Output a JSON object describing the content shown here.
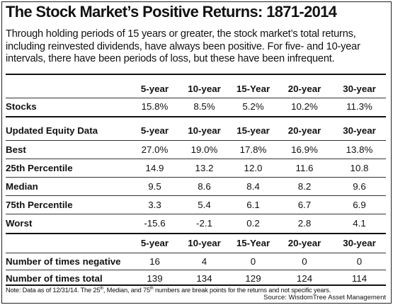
{
  "title": "The Stock Market’s Positive Returns: 1871-2014",
  "intro": "Through holding periods of 15 years or greater, the stock market’s total returns, including reinvested dividends, have always been positive. For five- and 10-year intervals, there have been periods of loss, but these have been infrequent.",
  "table1": {
    "columns": [
      "5-year",
      "10-year",
      "15-Year",
      "20-year",
      "30-year"
    ],
    "rows": [
      {
        "label": "Stocks",
        "values": [
          "15.8%",
          "8.5%",
          "5.2%",
          "10.2%",
          "11.3%"
        ]
      }
    ]
  },
  "table2": {
    "header_label": "Updated Equity Data",
    "columns": [
      "5-year",
      "10-year",
      "15-year",
      "20-year",
      "30-year"
    ],
    "rows": [
      {
        "label": "Best",
        "values": [
          "27.0%",
          "19.0%",
          "17.8%",
          "16.9%",
          "13.8%"
        ]
      },
      {
        "label": "25th Percentile",
        "values": [
          "14.9",
          "13.2",
          "12.0",
          "11.6",
          "10.8"
        ]
      },
      {
        "label": "Median",
        "values": [
          "9.5",
          "8.6",
          "8.4",
          "8.2",
          "9.6"
        ]
      },
      {
        "label": "75th Percentile",
        "values": [
          "3.3",
          "5.4",
          "6.1",
          "6.7",
          "6.9"
        ]
      },
      {
        "label": "Worst",
        "values": [
          "-15.6",
          "-2.1",
          "0.2",
          "2.8",
          "4.1"
        ]
      }
    ]
  },
  "table3": {
    "columns": [
      "5-year",
      "10-year",
      "15-Year",
      "20-year",
      "30-year"
    ],
    "rows": [
      {
        "label": "Number of times negative",
        "values": [
          "16",
          "4",
          "0",
          "0",
          "0"
        ]
      },
      {
        "label": "Number of times total",
        "values": [
          "139",
          "134",
          "129",
          "124",
          "114"
        ]
      }
    ]
  },
  "note": {
    "a": "Note: Data as of 12/31/14. The 25",
    "sup1": "th",
    "b": ", Median,  and 75",
    "sup2": "th",
    "c": " numbers are break points for the returns and not specific years."
  },
  "source": "Source: WisdomTree Asset Management"
}
